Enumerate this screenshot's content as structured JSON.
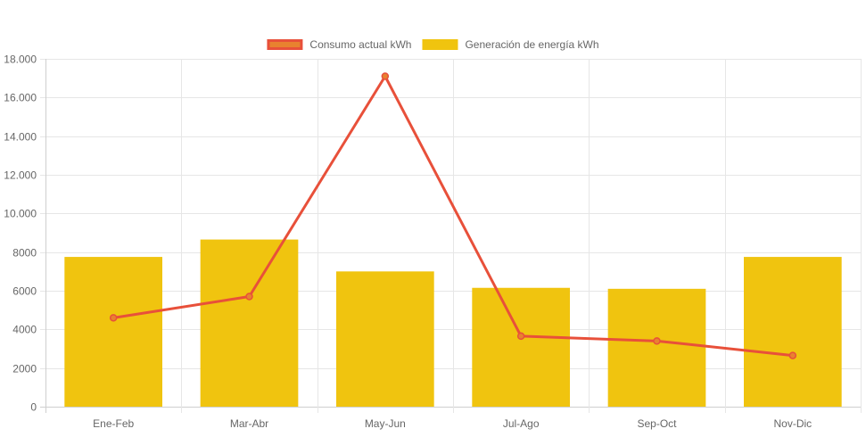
{
  "chart_data": {
    "type": "bar",
    "categories": [
      "Ene-Feb",
      "Mar-Abr",
      "May-Jun",
      "Jul-Ago",
      "Sep-Oct",
      "Nov-Dic"
    ],
    "series": [
      {
        "name": "Consumo actual kWh",
        "type": "line",
        "values": [
          4600,
          5700,
          17100,
          3650,
          3400,
          2650
        ],
        "color": "#e8503a",
        "fill": "#e8822f"
      },
      {
        "name": "Generación de energía kWh",
        "type": "bar",
        "values": [
          7750,
          8650,
          7000,
          6150,
          6100,
          7750
        ],
        "color": "#f0c40f"
      }
    ],
    "ylim": [
      0,
      18000
    ],
    "yticks": [
      0,
      2000,
      4000,
      6000,
      8000,
      10000,
      12000,
      14000,
      16000,
      18000
    ],
    "ytick_labels": [
      "0",
      "2000",
      "4000",
      "6000",
      "8000",
      "10.000",
      "12.000",
      "14.000",
      "16.000",
      "18.000"
    ],
    "grid": true,
    "legend_position": "top-center",
    "title": "",
    "xlabel": "",
    "ylabel": ""
  }
}
